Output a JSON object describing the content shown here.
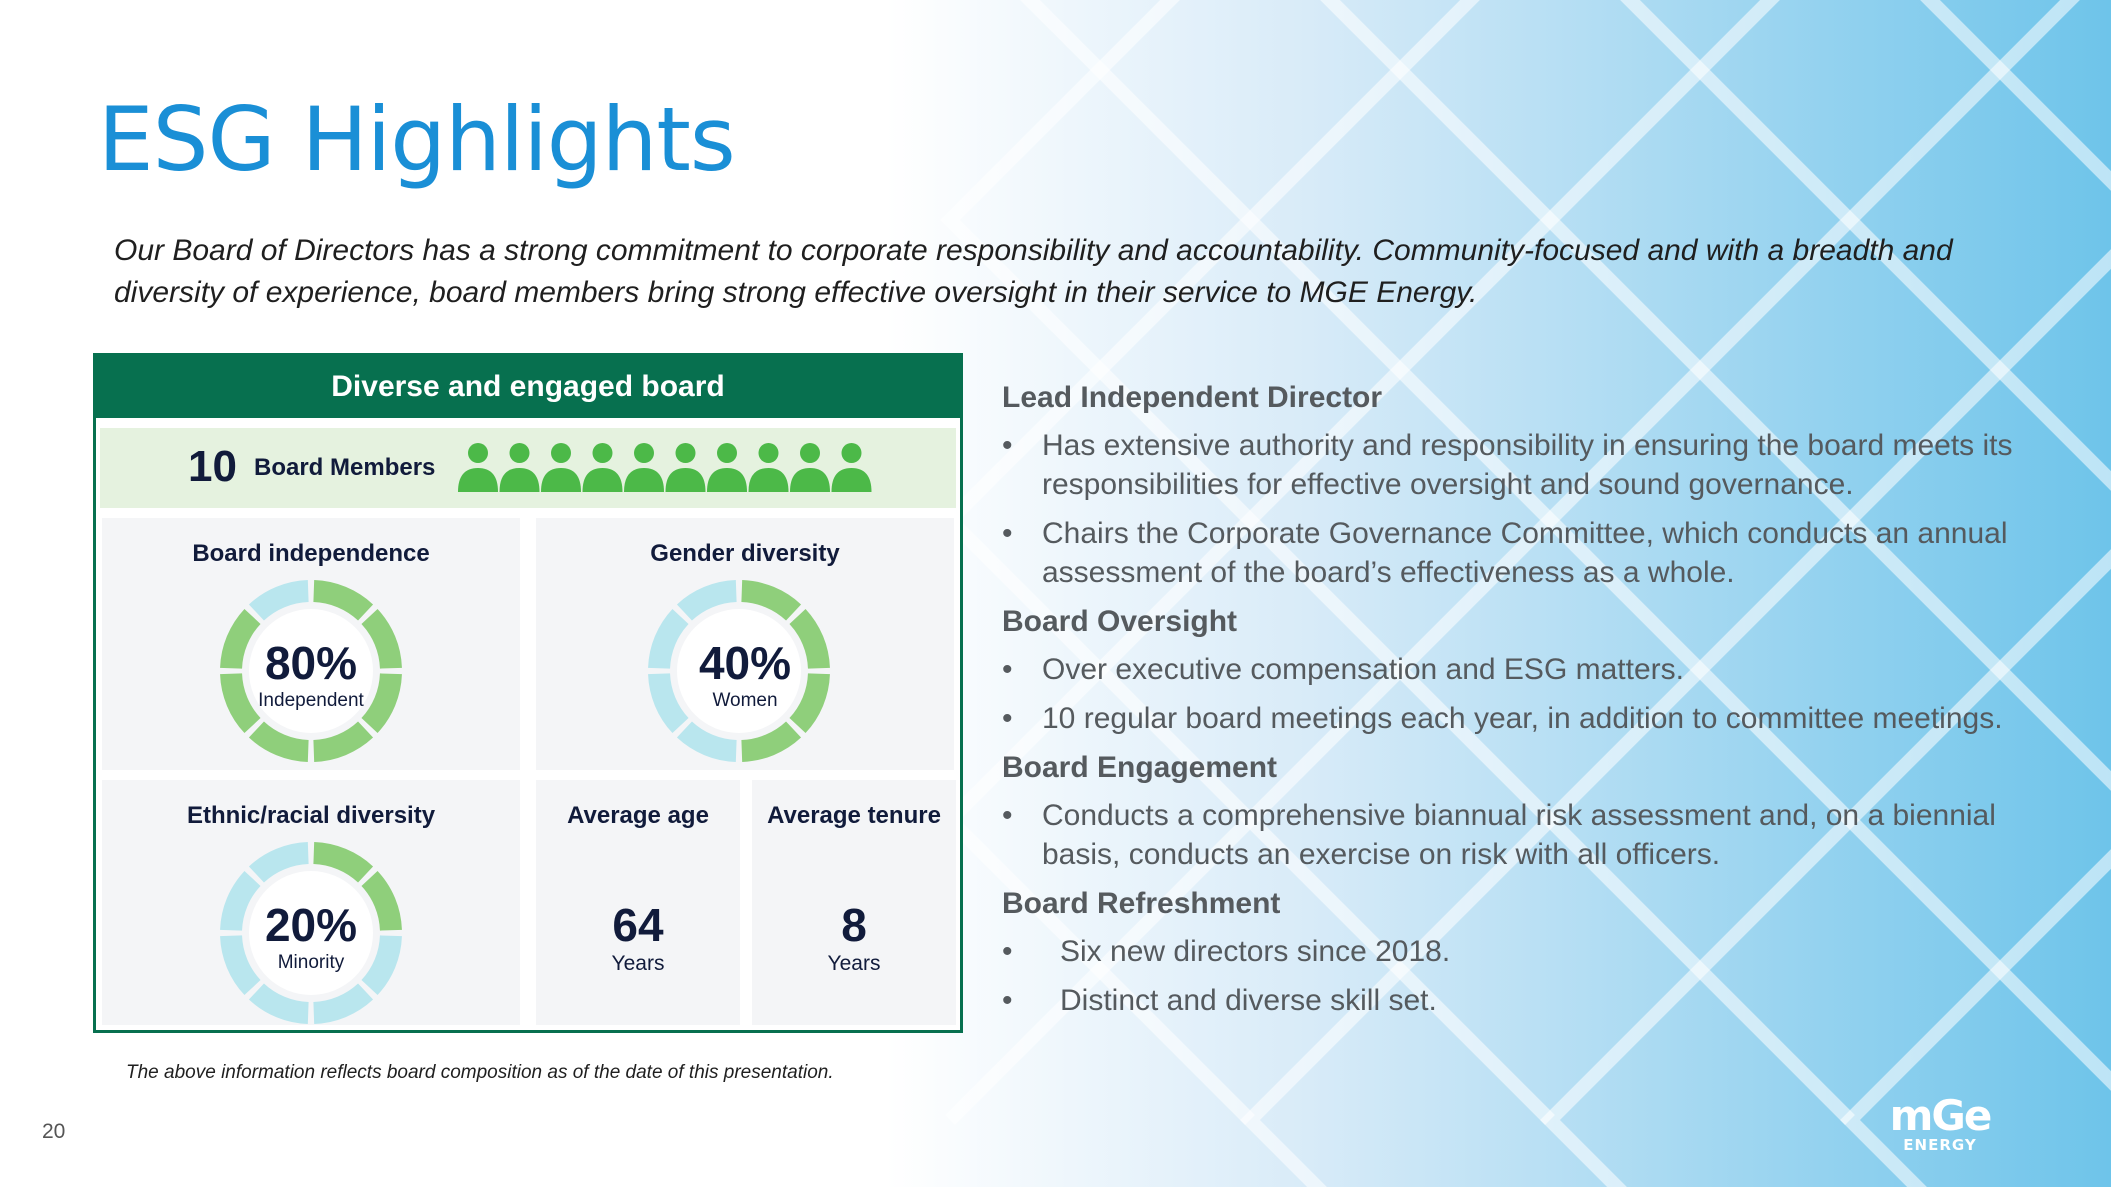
{
  "title": "ESG Highlights",
  "intro": "Our Board of Directors has a strong commitment to corporate responsibility and accountability. Community-focused and with a breadth and diversity of experience, board members bring strong effective oversight in their service to MGE Energy.",
  "panel": {
    "header": "Diverse and engaged board",
    "members_count": "10",
    "members_label": "Board Members",
    "independence": {
      "title": "Board independence",
      "pct": "80%",
      "sub": "Independent",
      "fraction": 0.8
    },
    "gender": {
      "title": "Gender diversity",
      "pct": "40%",
      "sub": "Women",
      "fraction": 0.4
    },
    "ethnic": {
      "title": "Ethnic/racial diversity",
      "pct": "20%",
      "sub": "Minority",
      "fraction": 0.2
    },
    "age": {
      "title": "Average age",
      "value": "64",
      "unit": "Years"
    },
    "tenure": {
      "title": "Average tenure",
      "value": "8",
      "unit": "Years"
    }
  },
  "footnote": "The above information reflects board composition as of the date of this presentation.",
  "page_number": "20",
  "sections": {
    "lead": {
      "heading": "Lead Independent Director",
      "bullets": [
        "Has extensive authority and responsibility in ensuring the board meets its responsibilities for effective oversight and sound governance.",
        "Chairs the Corporate Governance Committee, which conducts an annual assessment of the board’s effectiveness as a whole."
      ]
    },
    "oversight": {
      "heading": "Board Oversight",
      "bullets": [
        "Over executive compensation and ESG matters.",
        "10 regular board meetings each year, in addition to committee meetings."
      ]
    },
    "engagement": {
      "heading": "Board Engagement",
      "bullets": [
        "Conducts a comprehensive biannual risk assessment and, on a biennial basis, conducts an exercise on risk with all officers."
      ]
    },
    "refreshment": {
      "heading": "Board Refreshment",
      "bullets": [
        "Six new directors since 2018.",
        "Distinct and diverse skill set."
      ]
    }
  },
  "logo": {
    "line1": "mGe",
    "line2": "ENERGY"
  },
  "colors": {
    "accent": "#1a8fd6",
    "board_green": "#07704f",
    "donut_green": "#8fcf7b",
    "donut_blue": "#b9e6ee"
  }
}
